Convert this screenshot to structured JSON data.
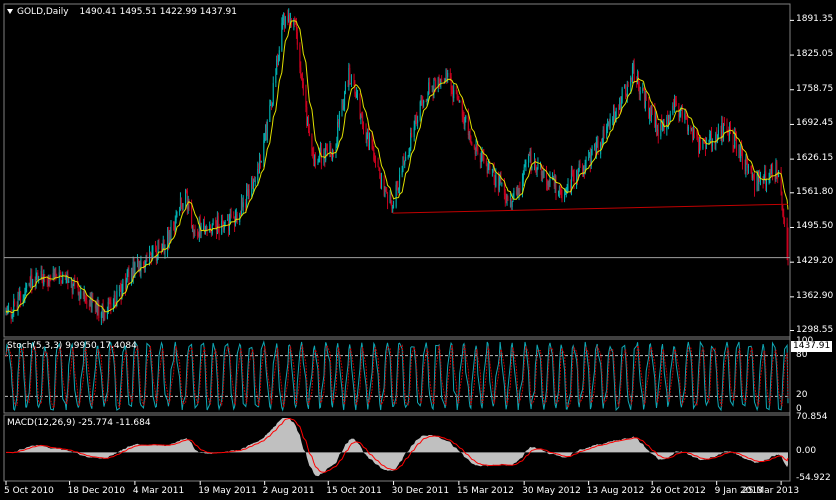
{
  "symbol_label": "GOLD,Daily",
  "ohlc": {
    "open": "1490.41",
    "high": "1495.51",
    "low": "1422.99",
    "close": "1437.91"
  },
  "current_price": "1437.91",
  "stoch": {
    "label": "Stoch(5,3,3)",
    "main": "9.9950",
    "signal": "17.4084"
  },
  "macd": {
    "label": "MACD(12,26,9)",
    "main": "-25.774",
    "signal": "-11.684"
  },
  "chart_data": [
    {
      "type": "candlestick",
      "series": [
        {
          "name": "GOLD,Daily"
        }
      ],
      "y_ticks": [
        "1891.35",
        "1825.05",
        "1758.75",
        "1692.45",
        "1626.15",
        "1561.80",
        "1495.50",
        "1429.20",
        "1362.90",
        "1298.55"
      ],
      "ylim": [
        1290,
        1915
      ],
      "x_ticks": [
        "5 Oct 2010",
        "18 Dec 2010",
        "4 Mar 2011",
        "19 May 2011",
        "2 Aug 2011",
        "15 Oct 2011",
        "30 Dec 2011",
        "15 Mar 2012",
        "30 May 2012",
        "13 Aug 2012",
        "26 Oct 2012",
        "9 Jan 2013",
        "25 Mar 2013"
      ],
      "xlim": [
        "2010-10-05",
        "2013-04-02"
      ],
      "approx_closes": [
        {
          "x": "2010-10-05",
          "y": 1330
        },
        {
          "x": "2010-11-09",
          "y": 1400
        },
        {
          "x": "2010-12-07",
          "y": 1410
        },
        {
          "x": "2011-01-07",
          "y": 1360
        },
        {
          "x": "2011-01-28",
          "y": 1325
        },
        {
          "x": "2011-03-04",
          "y": 1420
        },
        {
          "x": "2011-04-07",
          "y": 1460
        },
        {
          "x": "2011-05-02",
          "y": 1560
        },
        {
          "x": "2011-05-10",
          "y": 1495
        },
        {
          "x": "2011-06-30",
          "y": 1505
        },
        {
          "x": "2011-07-25",
          "y": 1610
        },
        {
          "x": "2011-08-05",
          "y": 1680
        },
        {
          "x": "2011-08-23",
          "y": 1890
        },
        {
          "x": "2011-09-06",
          "y": 1895
        },
        {
          "x": "2011-09-26",
          "y": 1625
        },
        {
          "x": "2011-10-21",
          "y": 1640
        },
        {
          "x": "2011-11-08",
          "y": 1790
        },
        {
          "x": "2011-12-14",
          "y": 1590
        },
        {
          "x": "2011-12-29",
          "y": 1540
        },
        {
          "x": "2012-01-31",
          "y": 1740
        },
        {
          "x": "2012-02-29",
          "y": 1790
        },
        {
          "x": "2012-04-03",
          "y": 1650
        },
        {
          "x": "2012-05-16",
          "y": 1540
        },
        {
          "x": "2012-06-06",
          "y": 1625
        },
        {
          "x": "2012-07-12",
          "y": 1565
        },
        {
          "x": "2012-08-21",
          "y": 1640
        },
        {
          "x": "2012-10-04",
          "y": 1790
        },
        {
          "x": "2012-11-02",
          "y": 1680
        },
        {
          "x": "2012-11-22",
          "y": 1730
        },
        {
          "x": "2012-12-20",
          "y": 1650
        },
        {
          "x": "2013-01-22",
          "y": 1690
        },
        {
          "x": "2013-02-15",
          "y": 1605
        },
        {
          "x": "2013-02-21",
          "y": 1575
        },
        {
          "x": "2013-03-22",
          "y": 1610
        },
        {
          "x": "2013-04-02",
          "y": 1437.91
        }
      ],
      "support_line": {
        "from": {
          "x": "2011-12-29",
          "y": 1523
        },
        "to": {
          "x": "2013-04-02",
          "y": 1540
        }
      },
      "current_price_line": 1437.91,
      "colors": {
        "bull": "#00b0b0",
        "bear": "#c8001e",
        "ma": "#e0e000",
        "support": "#c00000"
      }
    },
    {
      "type": "line",
      "series": [
        {
          "name": "Stoch(5,3,3)"
        }
      ],
      "y_ticks": [
        "100",
        "80",
        "20",
        "0"
      ],
      "ylim": [
        0,
        100
      ],
      "levels": [
        80,
        20
      ],
      "colors": {
        "main": "#0fa8b5",
        "signal": "#c00000"
      }
    },
    {
      "type": "area",
      "series": [
        {
          "name": "MACD(12,26,9)"
        }
      ],
      "y_ticks": [
        "70.854",
        "0.00",
        "-54.922"
      ],
      "ylim": [
        -54.922,
        70.854
      ],
      "colors": {
        "histogram": "#c0c0c0",
        "signal": "#ff0000"
      }
    }
  ]
}
